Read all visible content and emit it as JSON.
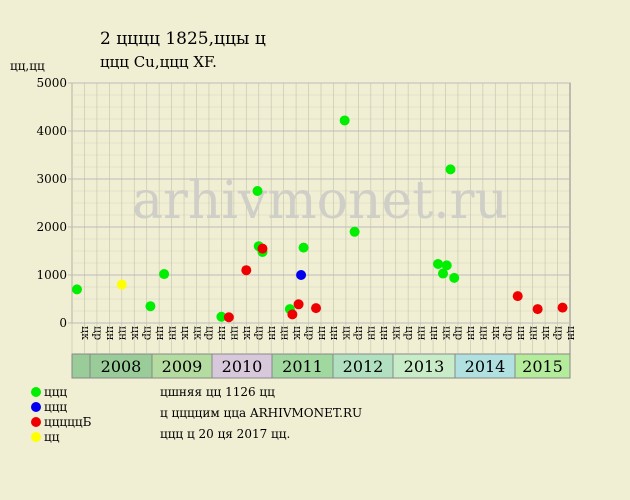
{
  "chart_data": {
    "type": "scatter",
    "title": "2 цццц 1825,ццы ц",
    "subtitle": "ццц Cu,ццц XF.",
    "y_label": "цц,цц",
    "watermark": "arhivmonet.ru",
    "xlim": [
      0,
      40
    ],
    "ylim": [
      0,
      5000
    ],
    "yticks": [
      0,
      1000,
      2000,
      3000,
      4000,
      5000
    ],
    "grid": true,
    "column_labels": [
      "цк",
      "цр",
      "цн",
      "цн",
      "цк",
      "цр",
      "цн",
      "цн",
      "цк",
      "цк",
      "цр",
      "цн",
      "цн",
      "цк",
      "цр",
      "цн",
      "цн",
      "цк",
      "цр",
      "цн",
      "цн",
      "цк",
      "цр",
      "цн",
      "цн",
      "цк",
      "цр",
      "цн",
      "цн",
      "цк",
      "цр",
      "цн",
      "цн",
      "цк",
      "цр",
      "цн",
      "цн",
      "цк",
      "цр",
      "цн"
    ],
    "years": [
      "2008",
      "2009",
      "2010",
      "2011",
      "2012",
      "2013",
      "2014",
      "2015"
    ],
    "year_colors": [
      "#99cc99",
      "#b4dca0",
      "#d8c8dc",
      "#a0d8a0",
      "#b0e0c0",
      "#c8ecc8",
      "#b0e0e0",
      "#b4ec9c"
    ],
    "series": [
      {
        "name": "ццц",
        "color": "#00ee00",
        "x": [
          0.4,
          6.3,
          7.4,
          12.0,
          14.9,
          15.0,
          15.3,
          17.5,
          18.6,
          21.9,
          22.7,
          29.4,
          29.8,
          30.1,
          30.4,
          30.7
        ],
        "values": [
          700,
          350,
          1020,
          130,
          2750,
          1600,
          1480,
          290,
          1570,
          4220,
          1900,
          1230,
          1030,
          1200,
          3200,
          940
        ]
      },
      {
        "name": "ццц",
        "color": "#0000ee",
        "x": [
          18.4
        ],
        "values": [
          1000
        ]
      },
      {
        "name": "цццццБ",
        "color": "#ee0000",
        "x": [
          12.6,
          14.0,
          15.3,
          17.7,
          18.2,
          19.6,
          35.8,
          37.4,
          39.4
        ],
        "values": [
          120,
          1100,
          1550,
          180,
          390,
          310,
          560,
          290,
          320
        ]
      },
      {
        "name": "цц",
        "color": "#ffff00",
        "x": [
          4.0
        ],
        "values": [
          800
        ]
      }
    ],
    "footer": [
      "цшняя цц 1126 цц",
      "ц ццццим цца ARHIVMONET.RU",
      "ццц ц 20 ця 2017 цц."
    ]
  }
}
